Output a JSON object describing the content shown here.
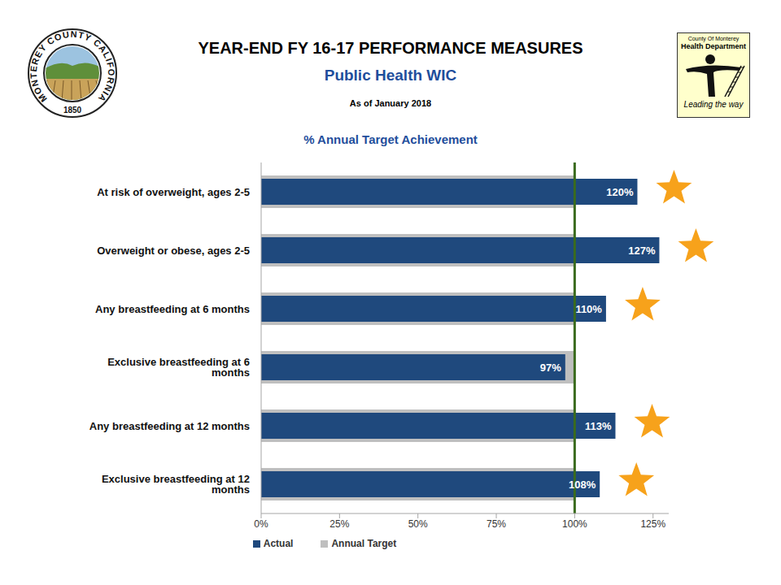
{
  "header": {
    "title": "YEAR-END FY 16-17 PERFORMANCE MEASURES",
    "subtitle": "Public Health WIC",
    "date": "As of January 2018"
  },
  "left_logo": {
    "text": "MONTEREY COUNTY CALIFORNIA",
    "year": "1850"
  },
  "right_logo": {
    "lines": [
      "County Of Monterey",
      "Health Department"
    ],
    "tagline": "Leading the way"
  },
  "chart_data": {
    "type": "bar",
    "title": "% Annual Target Achievement",
    "orientation": "horizontal",
    "categories": [
      "At risk of overweight, ages 2-5",
      "Overweight or obese, ages 2-5",
      "Any breastfeeding at 6 months",
      "Exclusive breastfeeding at 6 months",
      "Any breastfeeding at 12 months",
      "Exclusive breastfeeding at 12 months"
    ],
    "series": [
      {
        "name": "Annual Target",
        "color": "#bfbfbf",
        "values": [
          100,
          100,
          100,
          100,
          100,
          100
        ]
      },
      {
        "name": "Actual",
        "color": "#1f497d",
        "values": [
          120,
          127,
          110,
          97,
          113,
          108
        ],
        "value_labels": [
          "120%",
          "127%",
          "110%",
          "97%",
          "113%",
          "108%"
        ]
      }
    ],
    "reference_line": 100,
    "xlim": [
      0,
      130
    ],
    "xticks": [
      {
        "value": 0,
        "label": "0%"
      },
      {
        "value": 25,
        "label": "25%"
      },
      {
        "value": 50,
        "label": "50%"
      },
      {
        "value": 75,
        "label": "75%"
      },
      {
        "value": 100,
        "label": "100%"
      },
      {
        "value": 125,
        "label": "125%"
      }
    ],
    "grid": false,
    "legend": "bottom",
    "data_labels": true
  }
}
